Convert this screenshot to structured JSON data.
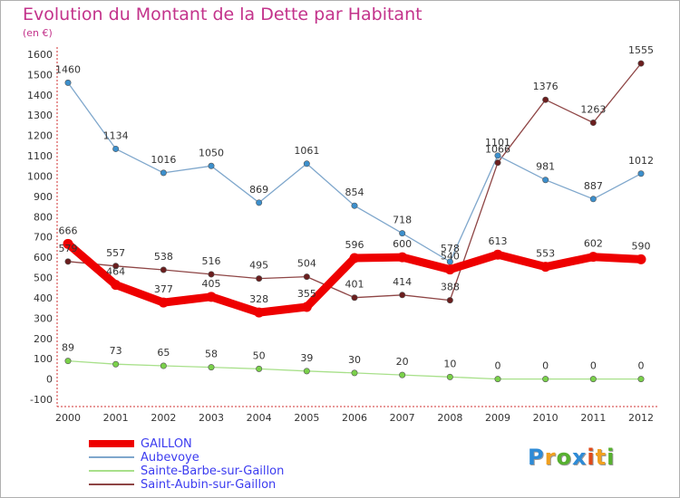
{
  "title": "Evolution du Montant de la Dette par Habitant",
  "subtitle": "(en €)",
  "logo": {
    "text": "Proxiti",
    "letters": [
      {
        "ch": "P",
        "color": "#2e8bd6"
      },
      {
        "ch": "r",
        "color": "#f0a020"
      },
      {
        "ch": "o",
        "color": "#57b030"
      },
      {
        "ch": "x",
        "color": "#2e8bd6"
      },
      {
        "ch": "i",
        "color": "#e04a1a"
      },
      {
        "ch": "t",
        "color": "#f0a020"
      },
      {
        "ch": "i",
        "color": "#57b030"
      }
    ]
  },
  "chart_data": {
    "type": "line",
    "title": "Evolution du Montant de la Dette par Habitant",
    "subtitle": "(en €)",
    "xlabel": "",
    "ylabel": "",
    "x": [
      "2000",
      "2001",
      "2002",
      "2003",
      "2004",
      "2005",
      "2006",
      "2007",
      "2008",
      "2009",
      "2010",
      "2011",
      "2012"
    ],
    "ylim": [
      -100,
      1600
    ],
    "yticks": [
      -100,
      0,
      100,
      200,
      300,
      400,
      500,
      600,
      700,
      800,
      900,
      1000,
      1100,
      1200,
      1300,
      1400,
      1500,
      1600
    ],
    "grid": false,
    "legend_position": "bottom-left",
    "series": [
      {
        "name": "GAILLON",
        "color": "#ee0000",
        "marker_color": "#ee0000",
        "bold": true,
        "values": [
          666,
          464,
          377,
          405,
          328,
          355,
          596,
          600,
          540,
          613,
          553,
          602,
          590
        ]
      },
      {
        "name": "Aubevoye",
        "color": "#7fa7cc",
        "marker_color": "#3c8fcc",
        "bold": false,
        "values": [
          1460,
          1134,
          1016,
          1050,
          869,
          1061,
          854,
          718,
          578,
          1101,
          981,
          887,
          1012
        ]
      },
      {
        "name": "Sainte-Barbe-sur-Gaillon",
        "color": "#a8e08a",
        "marker_color": "#7ad14a",
        "bold": false,
        "values": [
          89,
          73,
          65,
          58,
          50,
          39,
          30,
          20,
          10,
          0,
          0,
          0,
          0
        ]
      },
      {
        "name": "Saint-Aubin-sur-Gaillon",
        "color": "#8e4545",
        "marker_color": "#6b1e1e",
        "bold": false,
        "values": [
          579,
          557,
          538,
          516,
          495,
          504,
          401,
          414,
          388,
          1066,
          1376,
          1263,
          1555
        ]
      }
    ],
    "data_labels": {
      "GAILLON": [
        "666",
        "464",
        "377",
        "405",
        "328",
        "355",
        "596",
        "600",
        "540",
        "613",
        "553",
        "602",
        "590"
      ],
      "Aubevoye": [
        "1460",
        "1134",
        "1016",
        "1050",
        "869",
        "1061",
        "854",
        "718",
        "578",
        "1101",
        "981",
        "887",
        "1012"
      ],
      "Sainte-Barbe-sur-Gaillon": [
        "89",
        "73",
        "65",
        "58",
        "50",
        "39",
        "30",
        "20",
        "10",
        "0",
        "0",
        "0",
        "0"
      ],
      "Saint-Aubin-sur-Gaillon": [
        "579",
        "557",
        "538",
        "516",
        "495",
        "504",
        "401",
        "414",
        "388",
        "1066",
        "1376",
        "1263",
        "1555"
      ]
    }
  }
}
